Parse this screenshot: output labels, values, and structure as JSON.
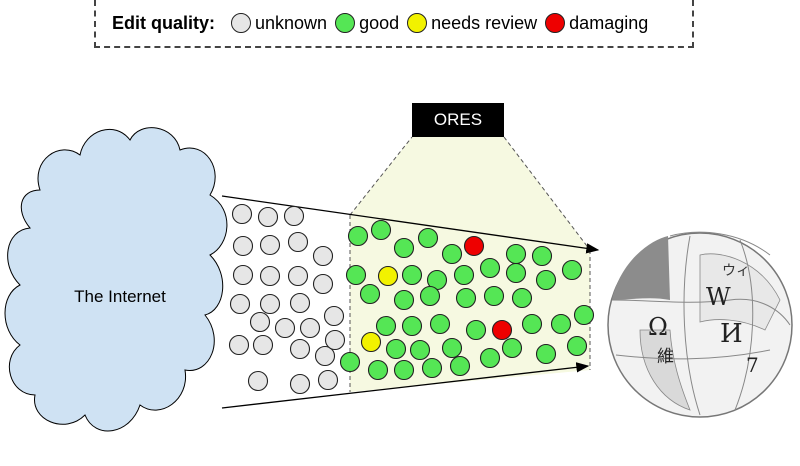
{
  "legend": {
    "title": "Edit quality:",
    "items": [
      {
        "label": "unknown",
        "color": "#e6e6e6"
      },
      {
        "label": "good",
        "color": "#55e655"
      },
      {
        "label": "needs review",
        "color": "#f2f200"
      },
      {
        "label": "damaging",
        "color": "#ee0000"
      }
    ]
  },
  "ores_label": "ORES",
  "internet_label": "The Internet",
  "colors": {
    "cloud_fill": "#cfe2f3",
    "cloud_stroke": "#000000",
    "ores_zone": "#f6f9e1",
    "globe_light": "#f2f2f2",
    "globe_dark": "#8c8c8c"
  }
}
